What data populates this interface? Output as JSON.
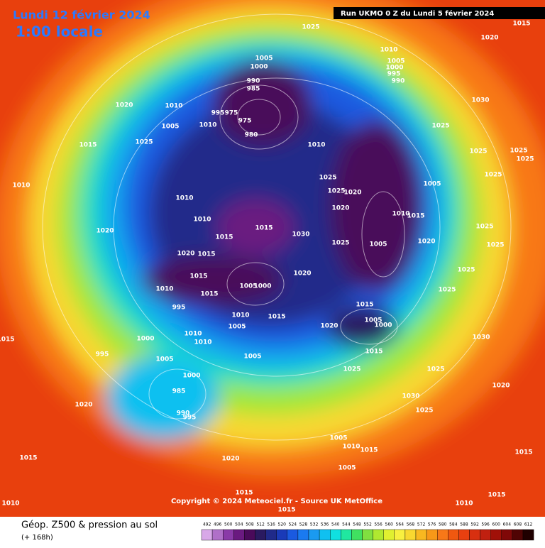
{
  "header": {
    "title": "Lundi 12 février 2024",
    "subtitle": "1:00 locale",
    "run": "Run UKMO 0 Z du Lundi 5 février 2024"
  },
  "copyright": "Copyright © 2024 Meteociel.fr - Source UK MetOffice",
  "footer": {
    "title": "Géop. Z500 & pression au sol",
    "subtitle": "(+ 168h)"
  },
  "legend": {
    "values": [
      492,
      496,
      500,
      504,
      508,
      512,
      516,
      520,
      524,
      528,
      532,
      536,
      540,
      544,
      548,
      552,
      556,
      560,
      564,
      568,
      572,
      576,
      580,
      584,
      588,
      592,
      596,
      600,
      604,
      608,
      612
    ],
    "colors": [
      "#d8a8e8",
      "#b070c8",
      "#8a3aa8",
      "#6a1a80",
      "#4a0a5a",
      "#2a1a60",
      "#202a8a",
      "#1a3ab8",
      "#1a5ae0",
      "#1a7af0",
      "#1a9af0",
      "#10c0f0",
      "#10e0e0",
      "#20e8a0",
      "#40e060",
      "#80e040",
      "#b0e830",
      "#e0f030",
      "#f8f040",
      "#f8d830",
      "#f8b820",
      "#f89818",
      "#f87818",
      "#f05810",
      "#e84010",
      "#d83010",
      "#c02010",
      "#a01008",
      "#800808",
      "#500404",
      "#200000"
    ]
  },
  "isobar_labels": [
    1025,
    1015,
    1020,
    1010,
    1005,
    1005,
    1000,
    1000,
    995,
    990,
    990,
    985,
    1020,
    1010,
    995,
    975,
    975,
    1030,
    1005,
    1010,
    980,
    1025,
    1015,
    1025,
    1010,
    1025,
    1025,
    1025,
    1025,
    1005,
    1025,
    1010,
    1025,
    1020,
    1010,
    1020,
    1010,
    1015,
    1010,
    1015,
    1025,
    1020,
    1015,
    1030,
    1025,
    1005,
    1020,
    1025,
    1020,
    1015,
    1015,
    1020,
    1005,
    1000,
    1025,
    1010,
    1015,
    1025,
    995,
    1010,
    1015,
    1015,
    1005,
    1000,
    1020,
    1005,
    1010,
    1000,
    1010,
    1030,
    995,
    1005,
    1005,
    1015,
    1000,
    985,
    990,
    995,
    1020,
    1025,
    1025,
    1030,
    1025,
    1005,
    1010,
    1015,
    1005,
    1020,
    1015,
    1015,
    1015,
    1010,
    1010,
    1015,
    1015,
    1015,
    1020
  ]
}
